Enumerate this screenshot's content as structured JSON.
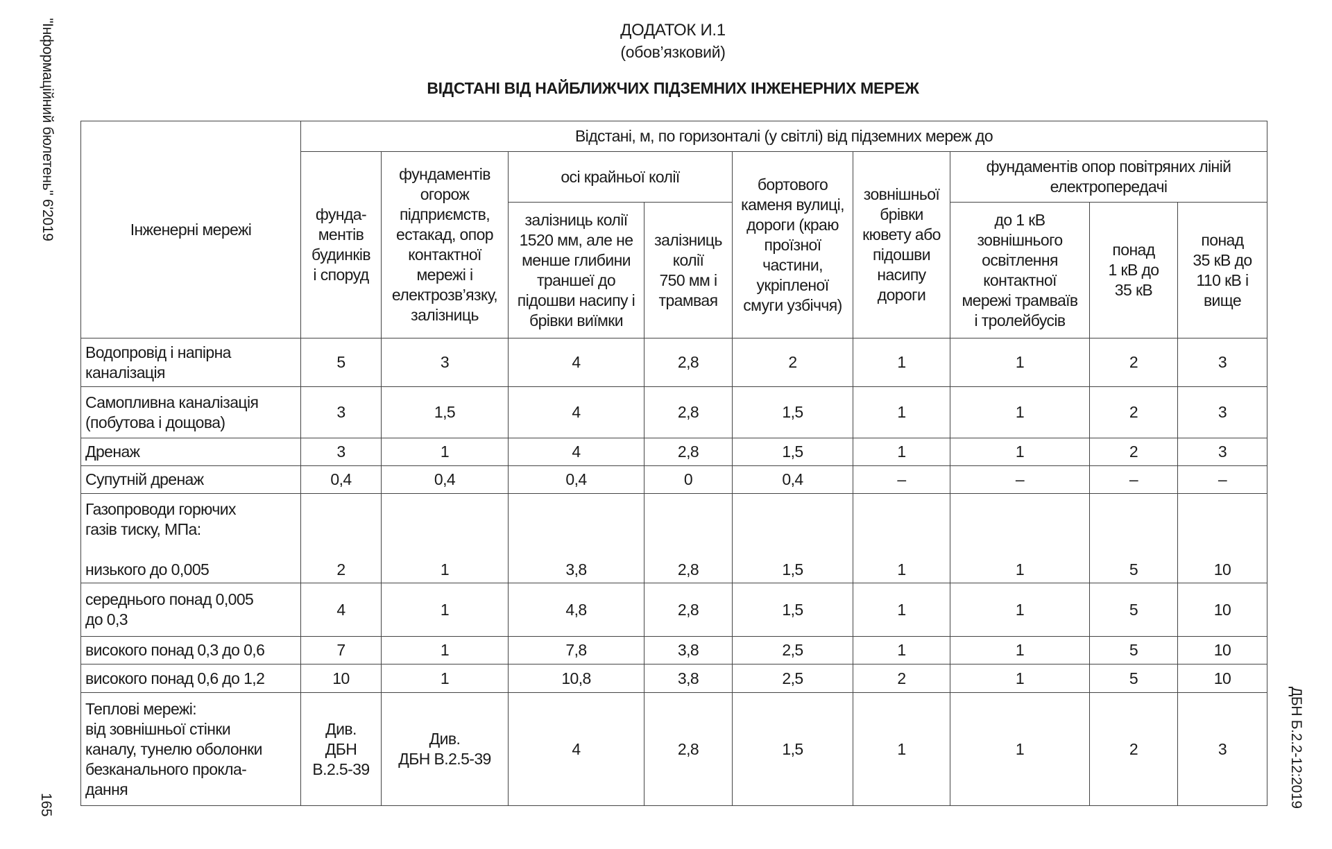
{
  "header": {
    "annex": "ДОДАТОК И.1",
    "status": "(обов’язковий)",
    "title": "ВІДСТАНІ ВІД НАЙБЛИЖЧИХ ПІДЗЕМНИХ ІНЖЕНЕРНИХ МЕРЕЖ"
  },
  "margins": {
    "left_bulletin": "\"Інформаційний бюлетень\" 6'2019",
    "page_number": "165",
    "right_code": "ДБН Б.2.2-12:2019"
  },
  "table": {
    "row_header": "Інженерні мережі",
    "group_header": "Відстані, м, по горизонталі (у світлі) від підземних мереж до",
    "col_foundations_buildings": "фунда-\nментів\nбудинків\nі споруд",
    "col_fences": "фундаментів\nогорож\nпідприємств,\nестакад, опор\nконтактної\nмережі і\nелектрозв’язку,\nзалізниць",
    "col_track_axis": "осі крайньої колії",
    "col_track_1520": "залізниць колії\n1520 мм, але не\nменше глибини\nтраншеї до\nпідошви насипу і\nбрівки виїмки",
    "col_track_750": "залізниць\nколії\n750 мм і\nтрамвая",
    "col_curb": "бортового\nкаменя вулиці,\nдороги (краю\nпроїзної\nчастини,\nукріпленої\nсмуги узбіччя)",
    "col_ditch": "зовнішньої\nбрівки\nкювету або\nпідошви\nнасипу\nдороги",
    "col_power": "фундаментів опор повітряних ліній\nелектропередачі",
    "col_power_1kv": "до 1 кВ\nзовнішнього\nосвітлення\nконтактної\nмережі трамваїв\nі тролейбусів",
    "col_power_35kv": "понад\n1 кВ до\n35 кВ",
    "col_power_110kv": "понад\n35 кВ до\n110 кВ і\nвище",
    "rows": [
      {
        "name": "Водопровід і напірна\nканалізація",
        "values": [
          "5",
          "3",
          "4",
          "2,8",
          "2",
          "1",
          "1",
          "2",
          "3"
        ]
      },
      {
        "name": "Самопливна каналізація\n(побутова і дощова)",
        "values": [
          "3",
          "1,5",
          "4",
          "2,8",
          "1,5",
          "1",
          "1",
          "2",
          "3"
        ]
      },
      {
        "name": "Дренаж",
        "values": [
          "3",
          "1",
          "4",
          "2,8",
          "1,5",
          "1",
          "1",
          "2",
          "3"
        ]
      },
      {
        "name": "Супутній дренаж",
        "values": [
          "0,4",
          "0,4",
          "0,4",
          "0",
          "0,4",
          "–",
          "–",
          "–",
          "–"
        ]
      },
      {
        "name": "Газопроводи горючих\nгазів тиску, МПа:\n\nнизького до 0,005",
        "values": [
          "2",
          "1",
          "3,8",
          "2,8",
          "1,5",
          "1",
          "1",
          "5",
          "10"
        ],
        "gas": true
      },
      {
        "name": "середнього понад 0,005\nдо 0,3",
        "values": [
          "4",
          "1",
          "4,8",
          "2,8",
          "1,5",
          "1",
          "1",
          "5",
          "10"
        ]
      },
      {
        "name": "високого понад 0,3 до 0,6",
        "values": [
          "7",
          "1",
          "7,8",
          "3,8",
          "2,5",
          "1",
          "1",
          "5",
          "10"
        ]
      },
      {
        "name": "високого понад 0,6 до 1,2",
        "values": [
          "10",
          "1",
          "10,8",
          "3,8",
          "2,5",
          "2",
          "1",
          "5",
          "10"
        ]
      },
      {
        "name": "Теплові мережі:\nвід зовнішньої стінки\nканалу, тунелю оболонки\nбезканального прокла-\nдання",
        "values": [
          "Див.\nДБН\nВ.2.5-39",
          "Див.\nДБН В.2.5-39",
          "4",
          "2,8",
          "1,5",
          "1",
          "1",
          "2",
          "3"
        ]
      }
    ]
  }
}
